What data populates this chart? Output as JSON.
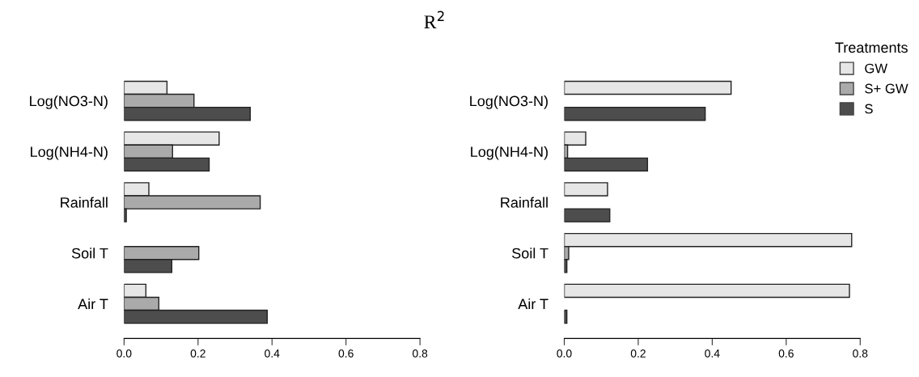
{
  "chart_data": [
    {
      "type": "bar",
      "orientation": "horizontal",
      "title": "R$^{2}$",
      "categories": [
        "Log(NO3-N)",
        "Log(NH4-N)",
        "Rainfall",
        "Soil T",
        "Air T"
      ],
      "series": [
        {
          "color": "#e6e6e6",
          "values": [
            0.116,
            0.257,
            0.067,
            0,
            0.059
          ]
        },
        {
          "color": "#aaaaaa",
          "values": [
            0.189,
            0.131,
            0.368,
            0.202,
            0.094
          ]
        },
        {
          "color": "#4d4d4d",
          "values": [
            0.341,
            0.23,
            0.006,
            0.129,
            0.387
          ]
        }
      ],
      "xlim": [
        0,
        0.8
      ],
      "xticks": [
        {
          "value": 0,
          "label": "0.0"
        },
        {
          "value": 0.2,
          "label": "0.2"
        },
        {
          "value": 0.4,
          "label": "0.4"
        },
        {
          "value": 0.6,
          "label": "0.6"
        },
        {
          "value": 0.8,
          "label": "0.8"
        }
      ],
      "grid": false,
      "legend": false
    },
    {
      "type": "bar",
      "orientation": "horizontal",
      "categories": [
        "Log(NO3-N)",
        "Log(NH4-N)",
        "Rainfall",
        "Soil T",
        "Air T"
      ],
      "legend_title": "Treatments",
      "series": [
        {
          "name": "GW",
          "color": "#e6e6e6",
          "values": [
            0.451,
            0.058,
            0.117,
            0.777,
            0.771
          ]
        },
        {
          "name": "S+ GW",
          "color": "#aaaaaa",
          "values": [
            0,
            0.009,
            0,
            0.012,
            0
          ]
        },
        {
          "name": "S",
          "color": "#4d4d4d",
          "values": [
            0.381,
            0.225,
            0.123,
            0.007,
            0.007
          ]
        }
      ],
      "xlim": [
        0,
        0.8
      ],
      "xticks": [
        {
          "value": 0,
          "label": "0.0"
        },
        {
          "value": 0.2,
          "label": "0.2"
        },
        {
          "value": 0.4,
          "label": "0.4"
        },
        {
          "value": 0.6,
          "label": "0.6"
        },
        {
          "value": 0.8,
          "label": "0.8"
        }
      ],
      "grid": false,
      "legend": "right"
    }
  ]
}
